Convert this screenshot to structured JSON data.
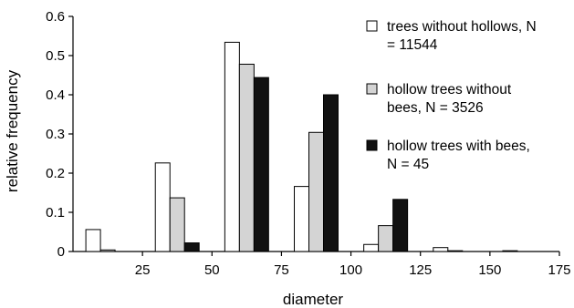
{
  "chart_data": {
    "type": "bar",
    "xlabel": "diameter",
    "ylabel": "relative frequency",
    "xlim": [
      0,
      175
    ],
    "ylim": [
      0,
      0.6
    ],
    "x_ticks": [
      "25",
      "50",
      "75",
      "100",
      "125",
      "150",
      "175"
    ],
    "y_ticks": [
      "0",
      "0.1",
      "0.2",
      "0.3",
      "0.4",
      "0.5",
      "0.6"
    ],
    "bin_width": 25,
    "bin_centers": [
      12.5,
      37.5,
      62.5,
      87.5,
      112.5,
      137.5,
      162.5
    ],
    "legend_position": "top-right",
    "series": [
      {
        "legend": [
          "trees without hollows, N",
          "= 11544"
        ],
        "color": "#ffffff",
        "values": [
          0.056,
          0.226,
          0.534,
          0.166,
          0.018,
          0.01,
          0.002
        ]
      },
      {
        "legend": [
          "hollow trees without",
          "bees, N = 3526"
        ],
        "color": "#d4d4d4",
        "values": [
          0.004,
          0.137,
          0.478,
          0.304,
          0.066,
          0.002,
          0.0
        ]
      },
      {
        "legend": [
          "hollow trees with bees,",
          "N = 45"
        ],
        "color": "#111111",
        "values": [
          0.0,
          0.022,
          0.444,
          0.4,
          0.133,
          0.0,
          0.0
        ]
      }
    ]
  }
}
